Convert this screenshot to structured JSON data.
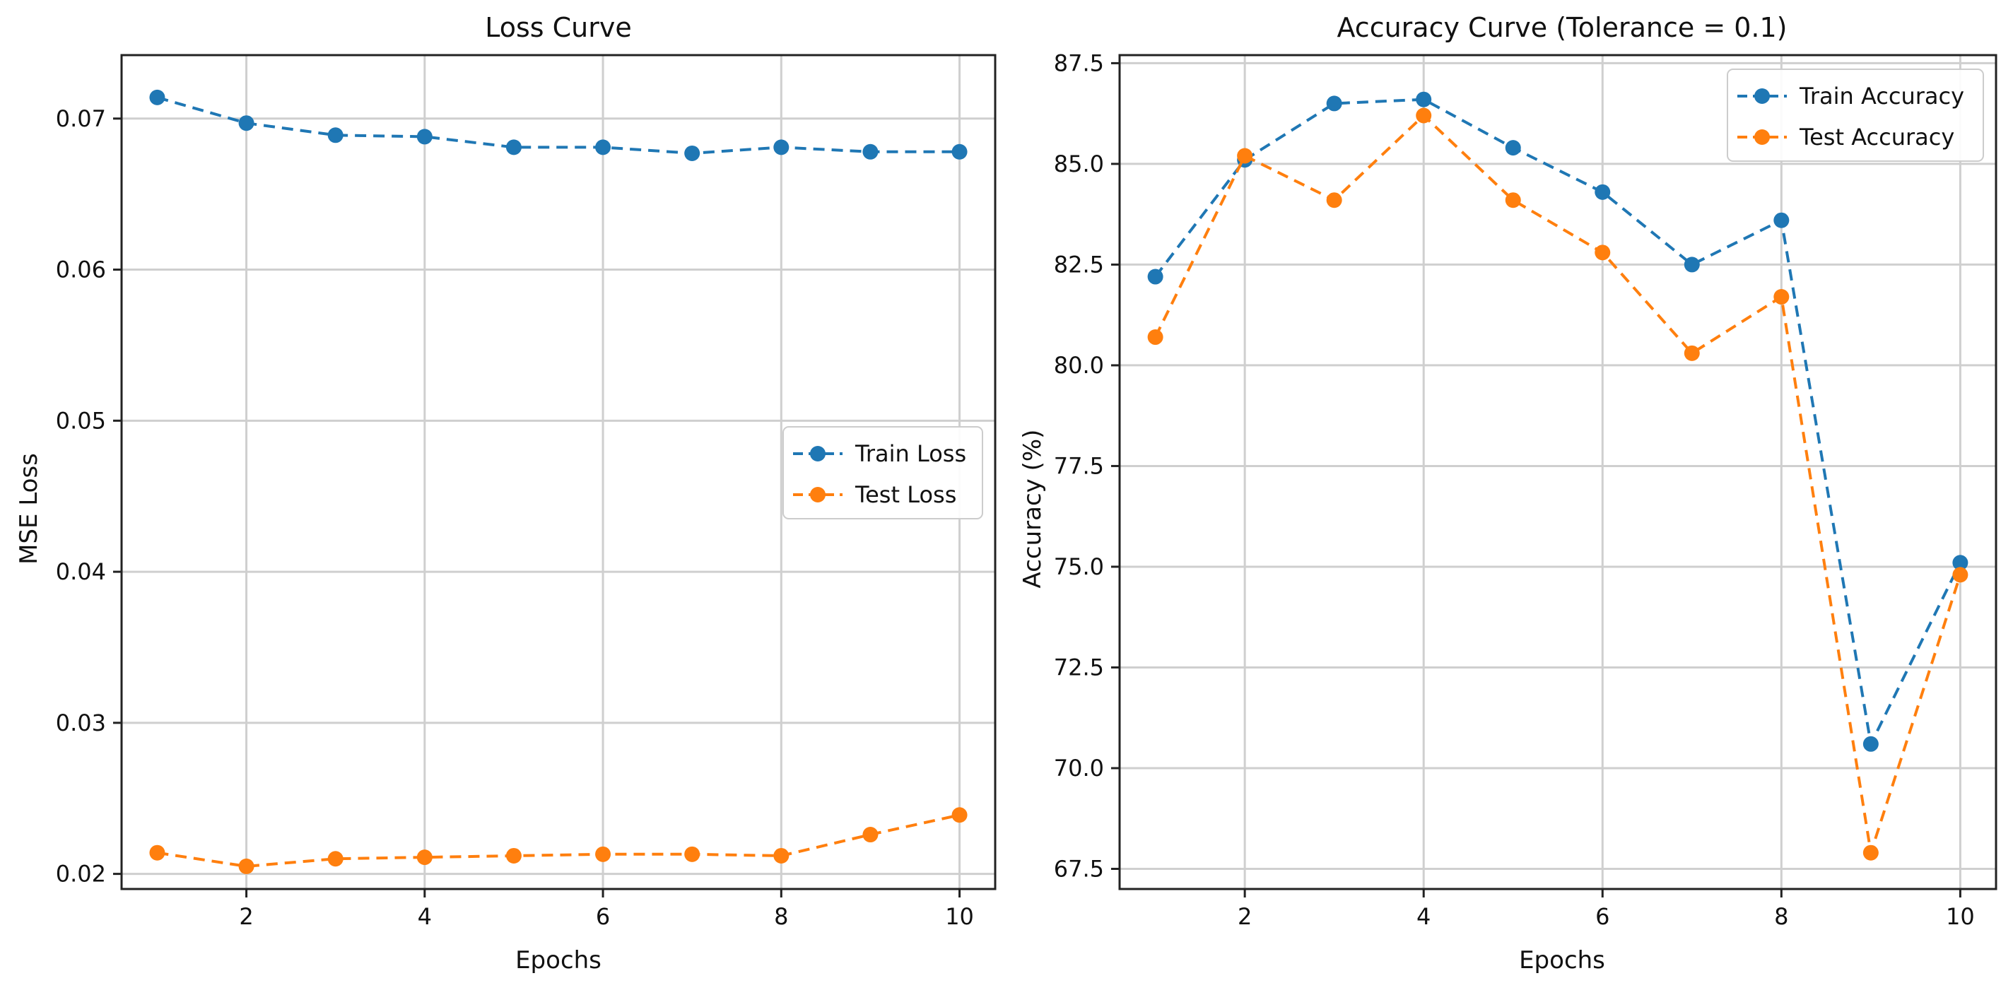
{
  "chart_data": [
    {
      "type": "line",
      "title": "Loss Curve",
      "xlabel": "Epochs",
      "ylabel": "MSE Loss",
      "xlim": [
        0.6,
        10.4
      ],
      "ylim": [
        0.019,
        0.0742
      ],
      "xticks": [
        2,
        4,
        6,
        8,
        10
      ],
      "xtick_labels": [
        "2",
        "4",
        "6",
        "8",
        "10"
      ],
      "yticks": [
        0.02,
        0.03,
        0.04,
        0.05,
        0.06,
        0.07
      ],
      "ytick_labels": [
        "0.02",
        "0.03",
        "0.04",
        "0.05",
        "0.06",
        "0.07"
      ],
      "grid": true,
      "legend_position": "center-right",
      "x": [
        1,
        2,
        3,
        4,
        5,
        6,
        7,
        8,
        9,
        10
      ],
      "series": [
        {
          "name": "Train Loss",
          "color": "#1f77b4",
          "values": [
            0.0714,
            0.0697,
            0.0689,
            0.0688,
            0.0681,
            0.0681,
            0.0677,
            0.0681,
            0.0678,
            0.0678
          ]
        },
        {
          "name": "Test Loss",
          "color": "#ff7f0e",
          "values": [
            0.0214,
            0.0205,
            0.021,
            0.0211,
            0.0212,
            0.0213,
            0.0213,
            0.0212,
            0.0226,
            0.0239
          ]
        }
      ]
    },
    {
      "type": "line",
      "title": "Accuracy Curve (Tolerance = 0.1)",
      "xlabel": "Epochs",
      "ylabel": "Accuracy (%)",
      "xlim": [
        0.6,
        10.4
      ],
      "ylim": [
        67.0,
        87.7
      ],
      "xticks": [
        2,
        4,
        6,
        8,
        10
      ],
      "xtick_labels": [
        "2",
        "4",
        "6",
        "8",
        "10"
      ],
      "yticks": [
        67.5,
        70.0,
        72.5,
        75.0,
        77.5,
        80.0,
        82.5,
        85.0,
        87.5
      ],
      "ytick_labels": [
        "67.5",
        "70.0",
        "72.5",
        "75.0",
        "77.5",
        "80.0",
        "82.5",
        "85.0",
        "87.5"
      ],
      "grid": true,
      "legend_position": "top-right",
      "x": [
        1,
        2,
        3,
        4,
        5,
        6,
        7,
        8,
        9,
        10
      ],
      "series": [
        {
          "name": "Train Accuracy",
          "color": "#1f77b4",
          "values": [
            82.2,
            85.1,
            86.5,
            86.6,
            85.4,
            84.3,
            82.5,
            83.6,
            70.6,
            75.1
          ]
        },
        {
          "name": "Test Accuracy",
          "color": "#ff7f0e",
          "values": [
            80.7,
            85.2,
            84.1,
            86.2,
            84.1,
            82.8,
            80.3,
            81.7,
            67.9,
            74.8
          ]
        }
      ]
    }
  ]
}
